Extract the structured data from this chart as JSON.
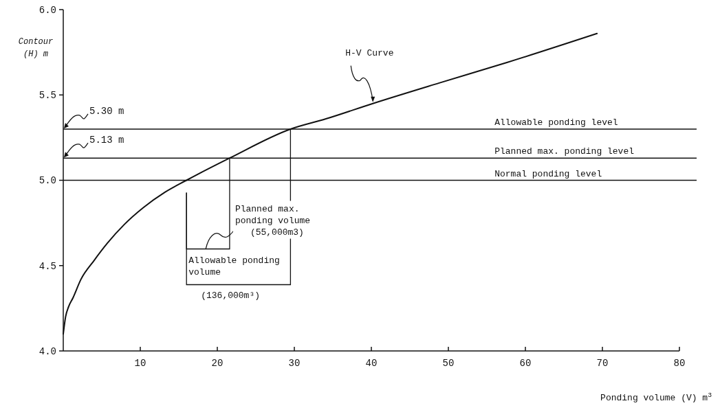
{
  "chart_data": {
    "type": "line",
    "xlabel": "Ponding volume (V) m$^{3}$",
    "ylabel": "Contour\n(H) m",
    "x": [
      0,
      0.3,
      0.7,
      1.25,
      2.3,
      4.0,
      5.7,
      7.9,
      10.4,
      13.2,
      16,
      21.6,
      29.5,
      34.1,
      40.2,
      48.8,
      57.6,
      69.3
    ],
    "series": [
      {
        "color": "#111111",
        "values": [
          4.1,
          4.2,
          4.26,
          4.31,
          4.42,
          4.53,
          4.63,
          4.74,
          4.84,
          4.93,
          5.0,
          5.13,
          5.3,
          5.36,
          5.45,
          5.57,
          5.69,
          5.86
        ]
      }
    ],
    "xlim": [
      0,
      80
    ],
    "xticks": [
      10,
      20,
      30,
      40,
      50,
      60,
      70,
      80
    ],
    "ylim": [
      4,
      6
    ],
    "yticks": [
      {
        "value": 4,
        "label": "4.0"
      },
      {
        "value": 4.5,
        "label": "4.5"
      },
      {
        "value": 5,
        "label": "5.0"
      },
      {
        "value": 5.5,
        "label": "5.5"
      },
      {
        "value": 6,
        "label": "6.0"
      }
    ],
    "ref_lines": [
      {
        "axis": "y",
        "value": 5.3,
        "label": "Allowable ponding level"
      },
      {
        "axis": "y",
        "value": 5.13,
        "label": "Planned max. ponding level"
      },
      {
        "axis": "y",
        "value": 5.0,
        "label": "Normal ponding level"
      }
    ],
    "annotations": [
      "5.30 m",
      "5.13 m",
      {
        "text": "H-V Curve",
        "x": 40.2,
        "y": 5.45
      },
      "Planned max. ponding volume (55,000m3)",
      "Allowable ponding volume (136,000m³)"
    ],
    "grid": false,
    "marker": "none",
    "line_style": "solid"
  }
}
